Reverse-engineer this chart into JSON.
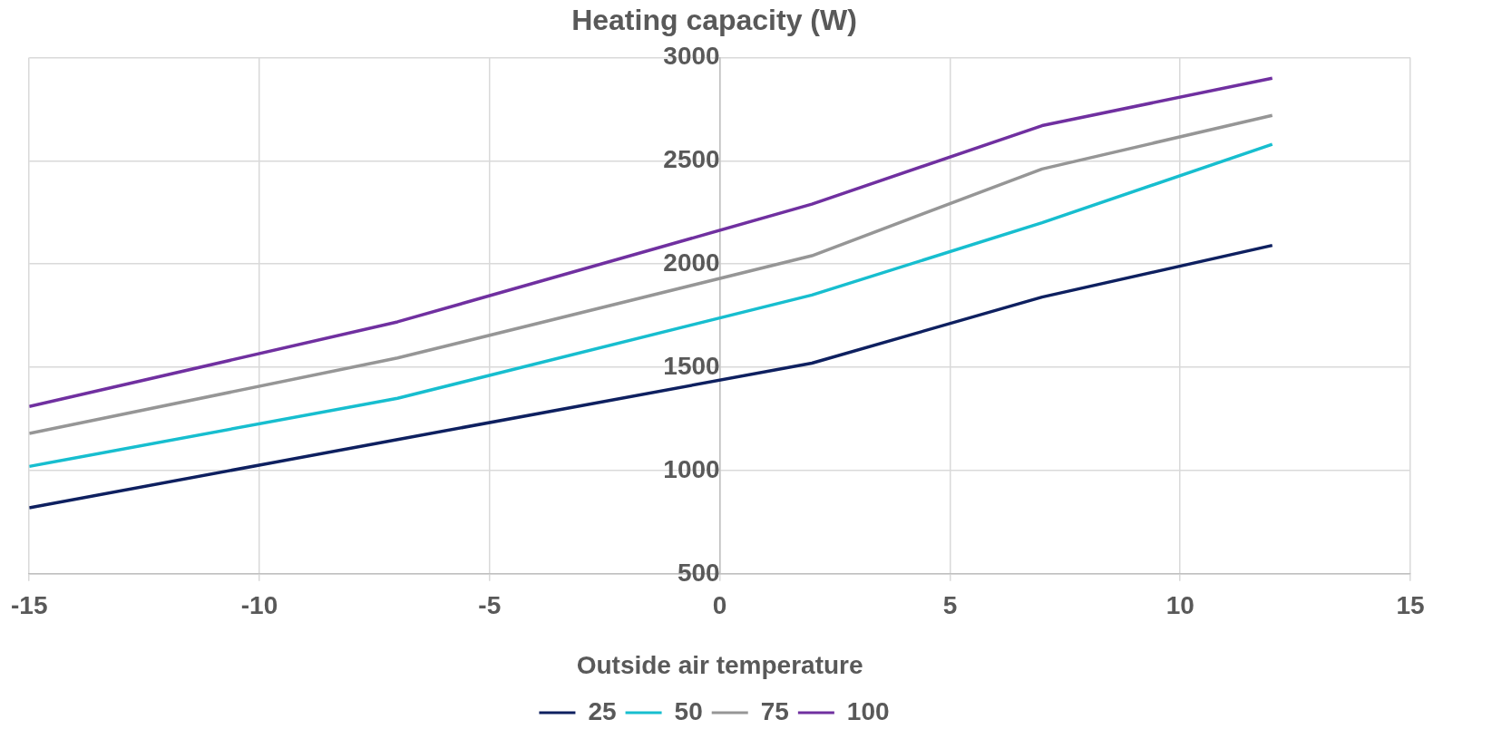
{
  "chart_data": {
    "type": "line",
    "title": "Heating capacity (W)",
    "xlabel": "Outside air temperature",
    "x": [
      -15,
      -7,
      2,
      7,
      12
    ],
    "series": [
      {
        "name": "25",
        "color": "#0e2060",
        "values": [
          820,
          1150,
          1520,
          1840,
          2090
        ]
      },
      {
        "name": "50",
        "color": "#17becf",
        "values": [
          1020,
          1350,
          1850,
          2200,
          2580
        ]
      },
      {
        "name": "75",
        "color": "#969696",
        "values": [
          1180,
          1545,
          2040,
          2460,
          2720
        ]
      },
      {
        "name": "100",
        "color": "#7030a0",
        "values": [
          1310,
          1720,
          2290,
          2670,
          2900
        ]
      }
    ],
    "xlim": [
      -15,
      15
    ],
    "xticks": [
      -15,
      -10,
      -5,
      0,
      5,
      10,
      15
    ],
    "ylim": [
      500,
      3000
    ],
    "yticks": [
      500,
      1000,
      1500,
      2000,
      2500,
      3000
    ],
    "grid": true,
    "legend": "bottom",
    "marker": "none",
    "line_style": "solid"
  }
}
